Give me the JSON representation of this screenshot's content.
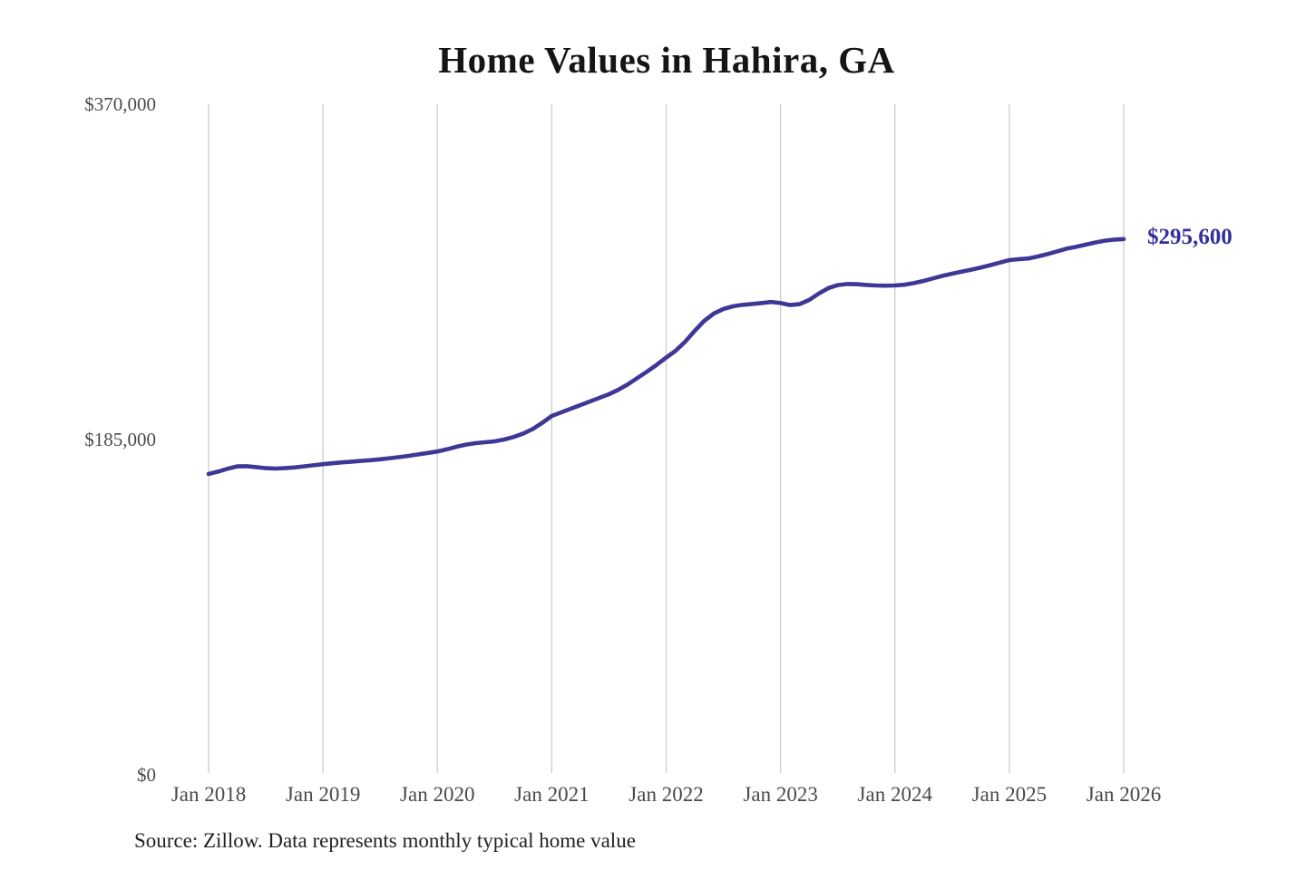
{
  "title": "Home Values in Hahira, GA",
  "source_note": "Source: Zillow. Data represents monthly typical home value",
  "end_label": "$295,600",
  "colors": {
    "line": "#3e3795",
    "end_label": "#34309c",
    "grid": "#cccccc",
    "axis_label": "#4a4a4a",
    "title": "#151515",
    "source": "#222222",
    "background": "#ffffff"
  },
  "chart_data": {
    "type": "line",
    "title": "Home Values in Hahira, GA",
    "xlabel": "",
    "ylabel": "",
    "ylim": [
      0,
      370000
    ],
    "grid": "vertical-only",
    "legend": "none",
    "latest_value": 295600,
    "latest_value_label": "$295,600",
    "y_ticks": [
      {
        "value": 0,
        "label": "$0"
      },
      {
        "value": 185000,
        "label": "$185,000"
      },
      {
        "value": 370000,
        "label": "$370,000"
      }
    ],
    "x_ticks": [
      "Jan 2018",
      "Jan 2019",
      "Jan 2020",
      "Jan 2021",
      "Jan 2022",
      "Jan 2023",
      "Jan 2024",
      "Jan 2025",
      "Jan 2026"
    ],
    "series": [
      {
        "name": "Monthly typical home value",
        "start_month": "2018-01",
        "end_month": "2026-01",
        "interval": "monthly",
        "values": [
          166000,
          167300,
          168900,
          170200,
          170300,
          169800,
          169200,
          169000,
          169200,
          169600,
          170200,
          170800,
          171400,
          171900,
          172400,
          172800,
          173200,
          173600,
          174100,
          174700,
          175300,
          176000,
          176800,
          177600,
          178400,
          179600,
          181000,
          182200,
          183000,
          183500,
          184000,
          185000,
          186400,
          188300,
          190800,
          194200,
          198000,
          200000,
          202000,
          204000,
          206000,
          208000,
          210000,
          212500,
          215500,
          219000,
          222500,
          226200,
          230200,
          234000,
          239000,
          245000,
          250500,
          254500,
          257000,
          258500,
          259300,
          259800,
          260300,
          260900,
          260300,
          259200,
          259700,
          262000,
          265500,
          268500,
          270200,
          270800,
          270700,
          270300,
          270000,
          269900,
          270000,
          270400,
          271300,
          272500,
          273900,
          275300,
          276500,
          277600,
          278700,
          279900,
          281200,
          282600,
          284000,
          284500,
          284900,
          286000,
          287300,
          288800,
          290300,
          291300,
          292500,
          293700,
          294700,
          295300,
          295600
        ]
      }
    ]
  }
}
